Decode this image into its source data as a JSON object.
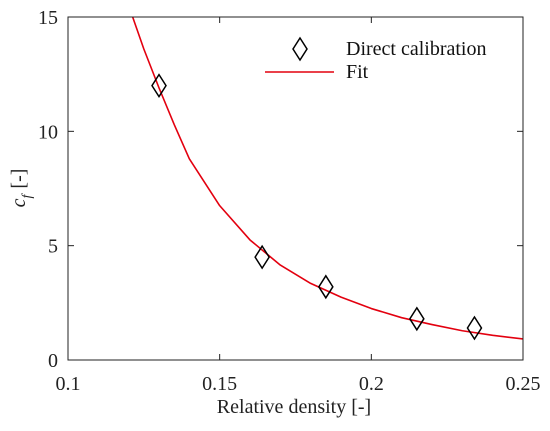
{
  "chart_data": {
    "type": "scatter",
    "title": "",
    "xlabel": "Relative density [-]",
    "ylabel_main": "c",
    "ylabel_sub": "f",
    "ylabel_suffix": "[-]",
    "xlim": [
      0.1,
      0.25
    ],
    "ylim": [
      0,
      15
    ],
    "xticks": [
      0.1,
      0.15,
      0.2,
      0.25
    ],
    "xtick_labels": [
      "0.1",
      "0.15",
      "0.2",
      "0.25"
    ],
    "yticks": [
      0,
      5,
      10,
      15
    ],
    "ytick_labels": [
      "0",
      "5",
      "10",
      "15"
    ],
    "grid": false,
    "legend_position": "top-right",
    "series": [
      {
        "name": "Direct calibration",
        "kind": "scatter",
        "marker": "diamond",
        "color": "#000000",
        "x": [
          0.13,
          0.164,
          0.185,
          0.215,
          0.234
        ],
        "y": [
          12.0,
          4.5,
          3.2,
          1.8,
          1.4
        ]
      },
      {
        "name": "Fit",
        "kind": "line",
        "color": "#e3000f",
        "x": [
          0.12,
          0.125,
          0.13,
          0.135,
          0.14,
          0.15,
          0.16,
          0.17,
          0.18,
          0.19,
          0.2,
          0.21,
          0.22,
          0.23,
          0.24,
          0.25
        ],
        "y": [
          15.5,
          13.6,
          11.9,
          10.3,
          8.8,
          6.75,
          5.25,
          4.15,
          3.35,
          2.75,
          2.25,
          1.85,
          1.55,
          1.28,
          1.08,
          0.92
        ]
      }
    ]
  }
}
